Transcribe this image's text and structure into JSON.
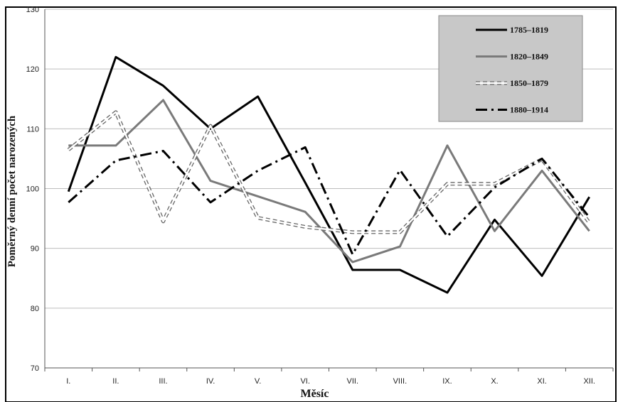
{
  "chart_data": {
    "type": "line",
    "title": "",
    "xlabel": "Měsíc",
    "ylabel": "Poměrný denní počet narozených",
    "ylim": [
      70,
      130
    ],
    "yticks": [
      70,
      80,
      90,
      100,
      110,
      120,
      130
    ],
    "grid": true,
    "legend_position": "top-right",
    "categories": [
      "I.",
      "II.",
      "III.",
      "IV.",
      "V.",
      "VI.",
      "VII.",
      "VIII.",
      "IX.",
      "X.",
      "XI.",
      "XII."
    ],
    "series": [
      {
        "name": "1785–1819",
        "color": "#000000",
        "style": "solid",
        "values": [
          99.5,
          122,
          117.2,
          110,
          115.4,
          101,
          86.4,
          86.4,
          82.6,
          94.8,
          85.4,
          98.6
        ]
      },
      {
        "name": "1820–1849",
        "color": "#7a7a7a",
        "style": "solid",
        "values": [
          107.2,
          107.2,
          114.8,
          101.3,
          98.7,
          96.1,
          87.7,
          90.3,
          107.2,
          92.9,
          103,
          92.9
        ]
      },
      {
        "name": "1850–1879",
        "color": "#666666",
        "style": "double-dashed",
        "values": [
          106.5,
          112.8,
          94.5,
          110.5,
          95.1,
          93.6,
          92.7,
          92.7,
          100.8,
          100.8,
          104.9,
          94.3
        ]
      },
      {
        "name": "1880–1914",
        "color": "#000000",
        "style": "dash-dot",
        "values": [
          97.7,
          104.7,
          106.3,
          97.7,
          103,
          106.9,
          89,
          103.1,
          92,
          100.2,
          105,
          95.2
        ]
      }
    ]
  }
}
